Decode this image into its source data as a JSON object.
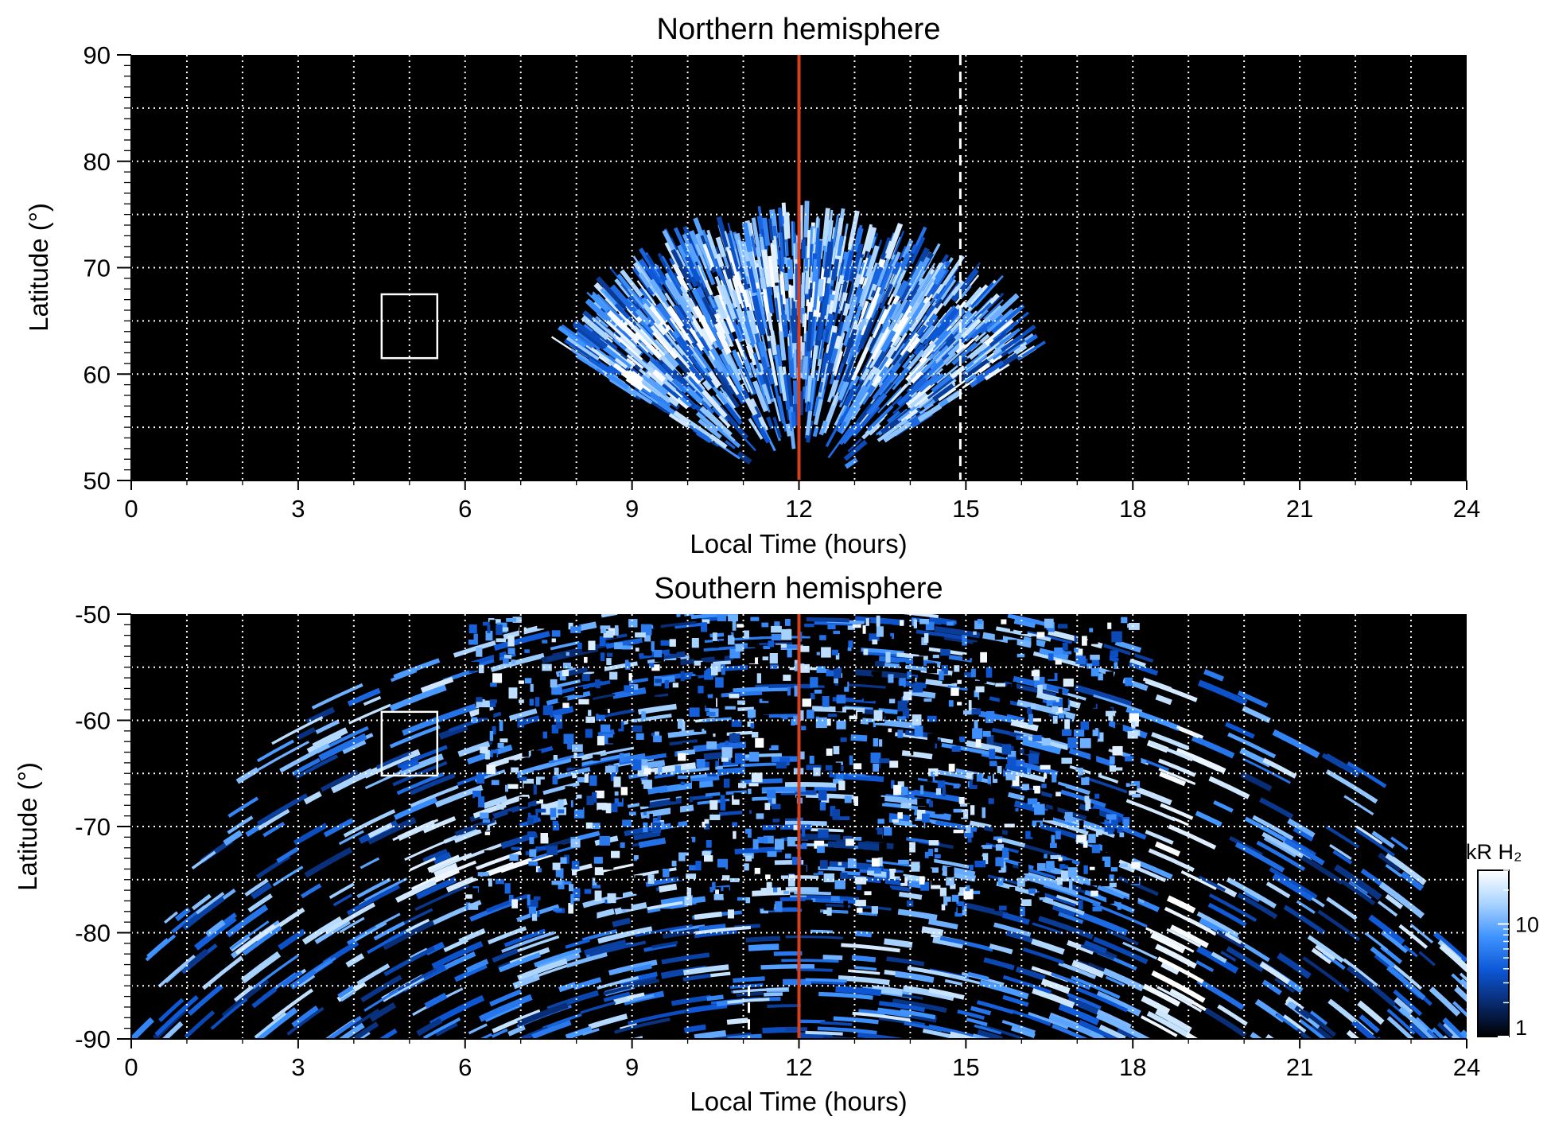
{
  "chart_data": [
    {
      "type": "heatmap",
      "title": "Northern hemisphere",
      "xlabel": "Local Time (hours)",
      "ylabel": "Latitude (°)",
      "xlim": [
        0,
        24
      ],
      "ylim": [
        50,
        90
      ],
      "xticks": [
        0,
        3,
        6,
        9,
        12,
        15,
        18,
        21,
        24
      ],
      "yticks": [
        50,
        60,
        70,
        80,
        90
      ],
      "grid": "dotted white, every 1 h and 5°",
      "emission_region": {
        "shape": "dome centred near 12 h",
        "lt_extent_at_50": [
          7.7,
          16.7
        ],
        "peak_latitude": 73,
        "bright_band_latitude": [
          58,
          67
        ]
      },
      "annotations": [
        {
          "kind": "vertical-line",
          "x": 12,
          "color": "#d8401c",
          "style": "solid"
        },
        {
          "kind": "vertical-line",
          "x": 14.9,
          "color": "#ffffff",
          "style": "dashed",
          "ylim": [
            50,
            90
          ]
        },
        {
          "kind": "box",
          "xlim": [
            4.5,
            5.5
          ],
          "ylim": [
            61.5,
            67.5
          ],
          "color": "#ffffff"
        }
      ]
    },
    {
      "type": "heatmap",
      "title": "Southern hemisphere",
      "xlabel": "Local Time (hours)",
      "ylabel": "Latitude (°)",
      "xlim": [
        0,
        24
      ],
      "ylim": [
        -90,
        -50
      ],
      "xticks": [
        0,
        3,
        6,
        9,
        12,
        15,
        18,
        21,
        24
      ],
      "yticks": [
        -50,
        -60,
        -70,
        -80,
        -90
      ],
      "grid": "dotted white, every 1 h and 5°",
      "emission_region": {
        "shape": "wide arch opening towards the pole",
        "lt_extent_at_minus50": [
          5,
          19
        ],
        "lt_extent_at_minus90": [
          0,
          24
        ],
        "bright_arc": {
          "lt": [
            5,
            9
          ],
          "latitude": -75
        },
        "bright_band_lt": [
          18,
          19
        ]
      },
      "annotations": [
        {
          "kind": "vertical-line",
          "x": 12,
          "color": "#d8401c",
          "style": "solid"
        },
        {
          "kind": "vertical-line",
          "x": 11.1,
          "color": "#ffffff",
          "style": "dashed",
          "ylim": [
            -90,
            -85
          ]
        },
        {
          "kind": "box",
          "xlim": [
            4.5,
            5.5
          ],
          "ylim": [
            -65.2,
            -59.2
          ],
          "color": "#ffffff"
        }
      ]
    }
  ],
  "colorbar": {
    "label": "kR H₂",
    "ticks": [
      {
        "value": 1,
        "label": "1"
      },
      {
        "value": 10,
        "label": "10"
      }
    ],
    "range": [
      1,
      30
    ],
    "scale": "log",
    "colors": [
      "#000000",
      "#082a6e",
      "#0d57d6",
      "#3f93ff",
      "#a9d4ff",
      "#ffffff"
    ]
  },
  "colors": {
    "background": "#000000",
    "noon_line": "#d8401c",
    "grid": "#ffffff"
  }
}
